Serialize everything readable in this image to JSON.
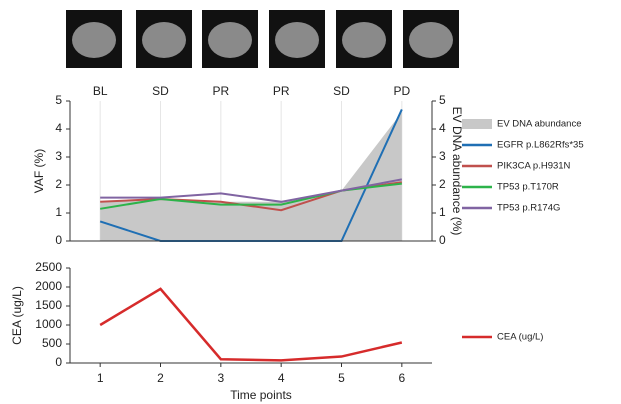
{
  "chart_data": [
    {
      "type": "line",
      "categories": [
        "BL",
        "SD",
        "PR",
        "PR",
        "SD",
        "PD"
      ],
      "y_label": "VAF (%)",
      "y2_label": "EV DNA abundance (%)",
      "ylim": [
        0,
        5
      ],
      "yticks": [
        0,
        1,
        2,
        3,
        4,
        5
      ],
      "y2lim": [
        0,
        5
      ],
      "y2ticks": [
        0,
        1,
        2,
        3,
        4,
        5
      ],
      "grid": true,
      "legend": "right",
      "series": [
        {
          "name": "EV DNA abundance",
          "color": "#c8c8c8",
          "kind": "area",
          "axis": "y2",
          "values": [
            1.4,
            1.5,
            1.4,
            1.4,
            1.8,
            4.6
          ]
        },
        {
          "name": "EGFR p.L862Rfs*35",
          "color": "#1f6fb4",
          "values": [
            0.7,
            0,
            0,
            0,
            0,
            4.7
          ]
        },
        {
          "name": "PIK3CA p.H931N",
          "color": "#c0504d",
          "values": [
            1.4,
            1.5,
            1.4,
            1.1,
            1.8,
            2.1
          ]
        },
        {
          "name": "TP53 p.T170R",
          "color": "#2db34a",
          "values": [
            1.15,
            1.5,
            1.3,
            1.3,
            1.8,
            2.05
          ]
        },
        {
          "name": "TP53 p.R174G",
          "color": "#8064a2",
          "values": [
            1.55,
            1.55,
            1.7,
            1.4,
            1.8,
            2.2
          ]
        }
      ]
    },
    {
      "type": "line",
      "x": [
        1,
        2,
        3,
        4,
        5,
        6
      ],
      "xlim": [
        0.5,
        6.5
      ],
      "xticks": [
        1,
        2,
        3,
        4,
        5,
        6
      ],
      "x_label": "Time points",
      "y_label": "CEA (ug/L)",
      "ylim": [
        0,
        2500
      ],
      "yticks": [
        0,
        500,
        1000,
        1500,
        2000,
        2500
      ],
      "legend": "right",
      "series": [
        {
          "name": "CEA (ug/L)",
          "color": "#d62b2b",
          "values": [
            1000,
            1950,
            100,
            70,
            170,
            540
          ]
        }
      ]
    }
  ]
}
